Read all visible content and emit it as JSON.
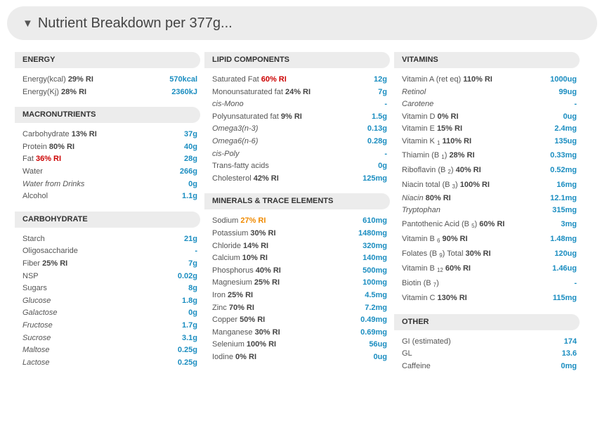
{
  "header": {
    "title": "Nutrient Breakdown per 377g..."
  },
  "columns": [
    [
      {
        "title": "ENERGY",
        "rows": [
          {
            "label": "Energy(kcal)",
            "ri": "29% RI",
            "value": "570kcal"
          },
          {
            "label": "Energy(Kj)",
            "ri": "28% RI",
            "value": "2360kJ"
          }
        ]
      },
      {
        "title": "MACRONUTRIENTS",
        "rows": [
          {
            "label": "Carbohydrate",
            "ri": "13% RI",
            "value": "37g"
          },
          {
            "label": "Protein",
            "ri": "80% RI",
            "value": "40g"
          },
          {
            "label": "Fat",
            "ri": "36% RI",
            "ri_style": "red",
            "value": "28g"
          },
          {
            "label": "Water",
            "value": "266g"
          },
          {
            "label": "Water from Drinks",
            "italic": true,
            "value": "0g"
          },
          {
            "label": "Alcohol",
            "value": "1.1g"
          }
        ]
      },
      {
        "title": "CARBOHYDRATE",
        "rows": [
          {
            "label": "Starch",
            "value": "21g"
          },
          {
            "label": "Oligosaccharide",
            "value": "-"
          },
          {
            "label": "Fiber",
            "ri": "25% RI",
            "value": "7g"
          },
          {
            "label": "NSP",
            "value": "0.02g"
          },
          {
            "label": "Sugars",
            "value": "8g"
          },
          {
            "label": "Glucose",
            "italic": true,
            "value": "1.8g"
          },
          {
            "label": "Galactose",
            "italic": true,
            "value": "0g"
          },
          {
            "label": "Fructose",
            "italic": true,
            "value": "1.7g"
          },
          {
            "label": "Sucrose",
            "italic": true,
            "value": "3.1g"
          },
          {
            "label": "Maltose",
            "italic": true,
            "value": "0.25g"
          },
          {
            "label": "Lactose",
            "italic": true,
            "value": "0.25g"
          }
        ]
      }
    ],
    [
      {
        "title": "LIPID COMPONENTS",
        "rows": [
          {
            "label": "Saturated Fat",
            "ri": "60% RI",
            "ri_style": "red",
            "value": "12g"
          },
          {
            "label": "Monounsaturated fat",
            "ri": "24% RI",
            "value": "7g"
          },
          {
            "label": "cis-Mono",
            "italic": true,
            "value": "-"
          },
          {
            "label": "Polyunsaturated fat",
            "ri": "9% RI",
            "value": "1.5g"
          },
          {
            "label": "Omega3(n-3)",
            "italic": true,
            "value": "0.13g"
          },
          {
            "label": "Omega6(n-6)",
            "italic": true,
            "value": "0.28g"
          },
          {
            "label": "cis-Poly",
            "italic": true,
            "value": "-"
          },
          {
            "label": "Trans-fatty acids",
            "value": "0g"
          },
          {
            "label": "Cholesterol",
            "ri": "42% RI",
            "value": "125mg"
          }
        ]
      },
      {
        "title": "MINERALS & TRACE ELEMENTS",
        "rows": [
          {
            "label": "Sodium",
            "ri": "27% RI",
            "ri_style": "orange",
            "value": "610mg"
          },
          {
            "label": "Potassium",
            "ri": "30% RI",
            "value": "1480mg"
          },
          {
            "label": "Chloride",
            "ri": "14% RI",
            "value": "320mg"
          },
          {
            "label": "Calcium",
            "ri": "10% RI",
            "value": "140mg"
          },
          {
            "label": "Phosphorus",
            "ri": "40% RI",
            "value": "500mg"
          },
          {
            "label": "Magnesium",
            "ri": "25% RI",
            "value": "100mg"
          },
          {
            "label": "Iron",
            "ri": "25% RI",
            "value": "4.5mg"
          },
          {
            "label": "Zinc",
            "ri": "70% RI",
            "value": "7.2mg"
          },
          {
            "label": "Copper",
            "ri": "50% RI",
            "value": "0.49mg"
          },
          {
            "label": "Manganese",
            "ri": "30% RI",
            "value": "0.69mg"
          },
          {
            "label": "Selenium",
            "ri": "100% RI",
            "value": "56ug"
          },
          {
            "label": "Iodine",
            "ri": "0% RI",
            "value": "0ug"
          }
        ]
      }
    ],
    [
      {
        "title": "VITAMINS",
        "rows": [
          {
            "label": "Vitamin A (ret eq)",
            "ri": "110% RI",
            "value": "1000ug"
          },
          {
            "label": "Retinol",
            "italic": true,
            "value": "99ug"
          },
          {
            "label": "Carotene",
            "italic": true,
            "value": "-"
          },
          {
            "label": "Vitamin D",
            "ri": "0% RI",
            "value": "0ug"
          },
          {
            "label": "Vitamin E",
            "ri": "15% RI",
            "value": "2.4mg"
          },
          {
            "label": "Vitamin K",
            "sub": "1",
            "ri": "110% RI",
            "value": "135ug"
          },
          {
            "label": "Thiamin (B",
            "sub": "1",
            "suffix": ")",
            "ri": "28% RI",
            "value": "0.33mg",
            "tall": true
          },
          {
            "label": "Riboflavin (B",
            "sub": "2",
            "suffix": ")",
            "ri": "40% RI",
            "value": "0.52mg",
            "tall": true
          },
          {
            "label": "Niacin total (B",
            "sub": "3",
            "suffix": ")",
            "ri": "100% RI",
            "value": "16mg",
            "tall": true
          },
          {
            "label": "Niacin",
            "italic": true,
            "ri": "80% RI",
            "value": "12.1mg"
          },
          {
            "label": "Tryptophan",
            "italic": true,
            "value": "315mg"
          },
          {
            "label": "Pantothenic Acid (B",
            "sub": "5",
            "suffix": ")",
            "ri": "60% RI",
            "value": "3mg",
            "tall": true
          },
          {
            "label": "Vitamin B",
            "sub": "6",
            "ri": "90% RI",
            "value": "1.48mg",
            "tall": true
          },
          {
            "label": "Folates (B",
            "sub": "9",
            "suffix": ") Total",
            "ri": "30% RI",
            "value": "120ug",
            "tall": true
          },
          {
            "label": "Vitamin B",
            "sub": "12",
            "ri": "60% RI",
            "value": "1.46ug",
            "tall": true
          },
          {
            "label": "Biotin (B",
            "sub": "7",
            "suffix": ")",
            "value": "-",
            "tall": true
          },
          {
            "label": "Vitamin C",
            "ri": "130% RI",
            "value": "115mg",
            "tall": true
          }
        ]
      },
      {
        "title": "OTHER",
        "rows": [
          {
            "label": "GI (estimated)",
            "value": "174"
          },
          {
            "label": "GL",
            "value": "13.6"
          },
          {
            "label": "Caffeine",
            "value": "0mg"
          }
        ]
      }
    ]
  ]
}
